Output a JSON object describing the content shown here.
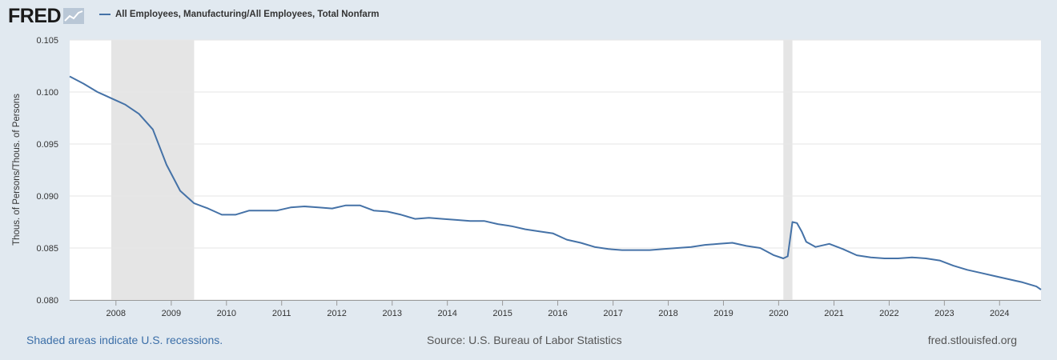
{
  "header": {
    "logo": "FRED",
    "legend": "All Employees, Manufacturing/All Employees, Total Nonfarm"
  },
  "footer": {
    "recessions": "Shaded areas indicate U.S. recessions.",
    "source": "Source: U.S. Bureau of Labor Statistics",
    "site": "fred.stlouisfed.org"
  },
  "colors": {
    "line": "#4572a7",
    "recession": "#e5e5e5",
    "background": "#e1e9f0"
  },
  "chart_data": {
    "type": "line",
    "ylabel": "Thous. of Persons/Thous. of Persons",
    "xlim": [
      "2007-03-01",
      "2024-10-01"
    ],
    "ylim": [
      0.08,
      0.105
    ],
    "y_ticks": [
      "0.080",
      "0.085",
      "0.090",
      "0.095",
      "0.100",
      "0.105"
    ],
    "x_ticks": [
      "2008",
      "2009",
      "2010",
      "2011",
      "2012",
      "2013",
      "2014",
      "2015",
      "2016",
      "2017",
      "2018",
      "2019",
      "2020",
      "2021",
      "2022",
      "2023",
      "2024"
    ],
    "grid": true,
    "legend_position": "top",
    "recessions": [
      {
        "start": "2007-12-01",
        "end": "2009-06-01"
      },
      {
        "start": "2020-02-01",
        "end": "2020-04-01"
      }
    ],
    "series": [
      {
        "name": "All Employees, Manufacturing/All Employees, Total Nonfarm",
        "x": [
          "2007-03",
          "2007-06",
          "2007-09",
          "2007-12",
          "2008-03",
          "2008-06",
          "2008-09",
          "2008-12",
          "2009-03",
          "2009-06",
          "2009-09",
          "2009-12",
          "2010-03",
          "2010-06",
          "2010-09",
          "2010-12",
          "2011-03",
          "2011-06",
          "2011-09",
          "2011-12",
          "2012-03",
          "2012-06",
          "2012-09",
          "2012-12",
          "2013-03",
          "2013-06",
          "2013-09",
          "2013-12",
          "2014-03",
          "2014-06",
          "2014-09",
          "2014-12",
          "2015-03",
          "2015-06",
          "2015-09",
          "2015-12",
          "2016-03",
          "2016-06",
          "2016-09",
          "2016-12",
          "2017-03",
          "2017-06",
          "2017-09",
          "2017-12",
          "2018-03",
          "2018-06",
          "2018-09",
          "2018-12",
          "2019-03",
          "2019-06",
          "2019-09",
          "2019-12",
          "2020-02",
          "2020-03",
          "2020-04",
          "2020-05",
          "2020-06",
          "2020-07",
          "2020-09",
          "2020-12",
          "2021-03",
          "2021-06",
          "2021-09",
          "2021-12",
          "2022-03",
          "2022-06",
          "2022-09",
          "2022-12",
          "2023-03",
          "2023-06",
          "2023-09",
          "2023-12",
          "2024-03",
          "2024-06",
          "2024-09",
          "2024-10"
        ],
        "values": [
          0.1015,
          0.1008,
          0.1,
          0.0994,
          0.0988,
          0.0979,
          0.0964,
          0.093,
          0.0905,
          0.0893,
          0.0888,
          0.0882,
          0.0882,
          0.0886,
          0.0886,
          0.0886,
          0.0889,
          0.089,
          0.0889,
          0.0888,
          0.0891,
          0.0891,
          0.0886,
          0.0885,
          0.0882,
          0.0878,
          0.0879,
          0.0878,
          0.0877,
          0.0876,
          0.0876,
          0.0873,
          0.0871,
          0.0868,
          0.0866,
          0.0864,
          0.0858,
          0.0855,
          0.0851,
          0.0849,
          0.0848,
          0.0848,
          0.0848,
          0.0849,
          0.085,
          0.0851,
          0.0853,
          0.0854,
          0.0855,
          0.0852,
          0.085,
          0.0843,
          0.084,
          0.0842,
          0.0875,
          0.0874,
          0.0866,
          0.0856,
          0.0851,
          0.0854,
          0.0849,
          0.0843,
          0.0841,
          0.084,
          0.084,
          0.0841,
          0.084,
          0.0838,
          0.0833,
          0.0829,
          0.0826,
          0.0823,
          0.082,
          0.0817,
          0.0813,
          0.081
        ]
      }
    ]
  }
}
